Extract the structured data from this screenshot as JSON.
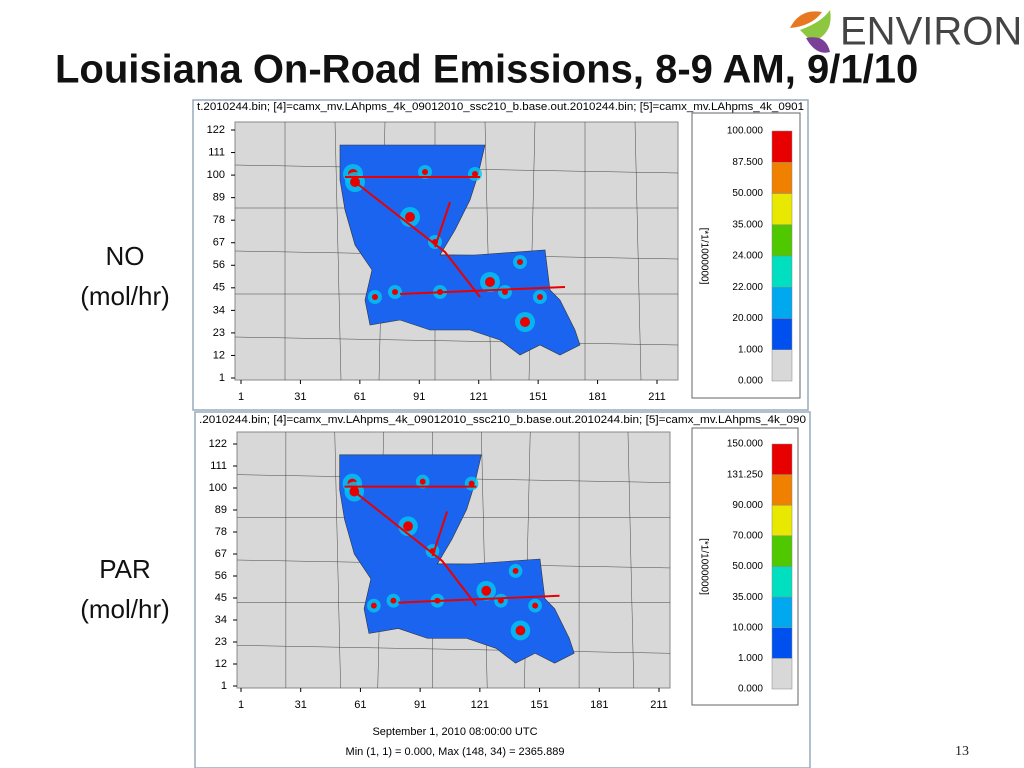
{
  "header": {
    "title": "Louisiana On-Road Emissions, 8-9 AM, 9/1/10",
    "logo": "ENVIRON"
  },
  "panels": [
    {
      "label": [
        "NO",
        "(mol/hr)"
      ],
      "file_header": "t.2010244.bin; [4]=camx_mv.LAhpms_4k_09012010_ssc210_b.base.out.2010244.bin; [5]=camx_mv.LAhpms_4k_0901",
      "xlim": [
        1,
        211
      ],
      "ylim": [
        1,
        122
      ],
      "xticks": [
        1,
        31,
        61,
        91,
        121,
        151,
        181,
        211
      ],
      "yticks": [
        1,
        12,
        23,
        34,
        45,
        56,
        67,
        78,
        89,
        100,
        111,
        122
      ],
      "legend": {
        "unit": "[*1/1000000]",
        "levels": [
          {
            "value": 100,
            "label": "100.000"
          },
          {
            "value": 87.5,
            "label": "87.500"
          },
          {
            "value": 50,
            "label": "50.000"
          },
          {
            "value": 35,
            "label": "35.000"
          },
          {
            "value": 24,
            "label": "24.000"
          },
          {
            "value": 22,
            "label": "22.000"
          },
          {
            "value": 20,
            "label": "20.000"
          },
          {
            "value": 1,
            "label": "1.000"
          },
          {
            "value": 0,
            "label": "0.000"
          }
        ],
        "colors": [
          "#e80000",
          "#f08000",
          "#e8e800",
          "#50c800",
          "#00e0c0",
          "#00a8f0",
          "#0050f0",
          "#d8d8d8"
        ]
      }
    },
    {
      "label": [
        "PAR",
        "(mol/hr)"
      ],
      "file_header": ".2010244.bin; [4]=camx_mv.LAhpms_4k_09012010_ssc210_b.base.out.2010244.bin; [5]=camx_mv.LAhpms_4k_090",
      "xlim": [
        1,
        211
      ],
      "ylim": [
        1,
        122
      ],
      "xticks": [
        1,
        31,
        61,
        91,
        121,
        151,
        181,
        211
      ],
      "yticks": [
        1,
        12,
        23,
        34,
        45,
        56,
        67,
        78,
        89,
        100,
        111,
        122
      ],
      "legend": {
        "unit": "[*1/1000000]",
        "levels": [
          {
            "value": 150,
            "label": "150.000"
          },
          {
            "value": 131.25,
            "label": "131.250"
          },
          {
            "value": 90,
            "label": "90.000"
          },
          {
            "value": 70,
            "label": "70.000"
          },
          {
            "value": 50,
            "label": "50.000"
          },
          {
            "value": 35,
            "label": "35.000"
          },
          {
            "value": 10,
            "label": "10.000"
          },
          {
            "value": 1,
            "label": "1.000"
          },
          {
            "value": 0,
            "label": "0.000"
          }
        ],
        "colors": [
          "#e80000",
          "#f08000",
          "#e8e800",
          "#50c800",
          "#00e0c0",
          "#00a8f0",
          "#0050f0",
          "#d8d8d8"
        ]
      },
      "caption": "September 1, 2010 08:00:00 UTC",
      "stats": "Min (1, 1) = 0.000, Max (148, 34) = 2365.889"
    }
  ],
  "page_number": "13"
}
